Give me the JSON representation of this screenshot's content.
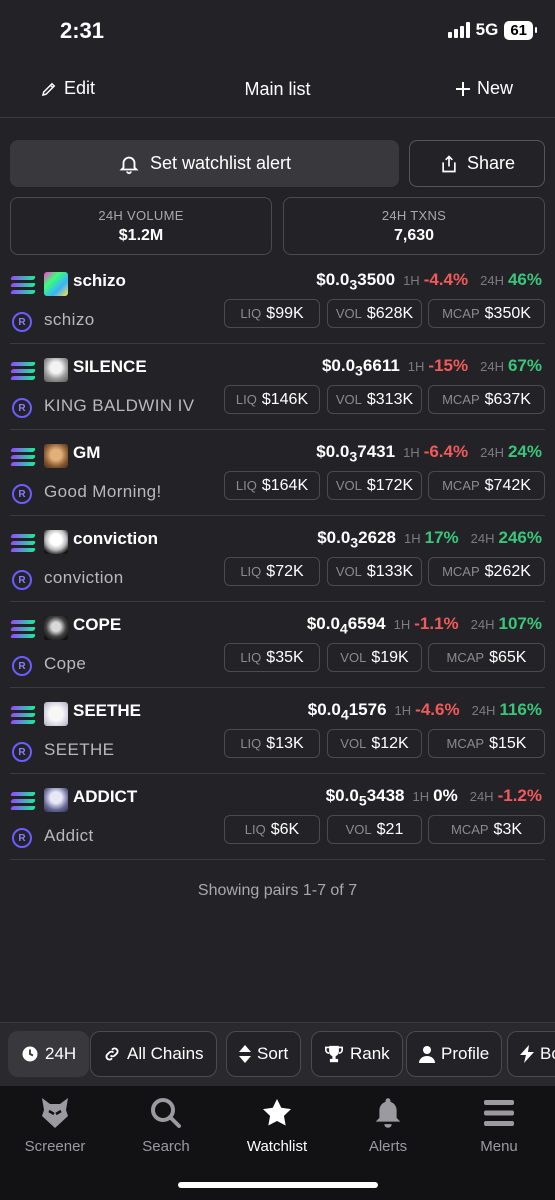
{
  "status": {
    "time": "2:31",
    "network": "5G",
    "battery": "61"
  },
  "header": {
    "edit": "Edit",
    "title": "Main list",
    "new": "New"
  },
  "actions": {
    "alert": "Set watchlist alert",
    "share": "Share"
  },
  "stats": {
    "volume_label": "24H VOLUME",
    "volume_value": "$1.2M",
    "txns_label": "24H TXNS",
    "txns_value": "7,630"
  },
  "labels": {
    "h1": "1H",
    "h24": "24H",
    "liq": "LIQ",
    "vol": "VOL",
    "mcap": "MCAP"
  },
  "pairs": [
    {
      "symbol": "schizo",
      "name": "schizo",
      "price_prefix": "$0.0",
      "price_zeros": "3",
      "price_digits": "3500",
      "change_1h": "-4.4%",
      "change_24h": "46%",
      "liq": "$99K",
      "vol": "$628K",
      "mcap": "$350K"
    },
    {
      "symbol": "SILENCE",
      "name": "KING BALDWIN IV",
      "price_prefix": "$0.0",
      "price_zeros": "3",
      "price_digits": "6611",
      "change_1h": "-15%",
      "change_24h": "67%",
      "liq": "$146K",
      "vol": "$313K",
      "mcap": "$637K"
    },
    {
      "symbol": "GM",
      "name": "Good Morning!",
      "price_prefix": "$0.0",
      "price_zeros": "3",
      "price_digits": "7431",
      "change_1h": "-6.4%",
      "change_24h": "24%",
      "liq": "$164K",
      "vol": "$172K",
      "mcap": "$742K"
    },
    {
      "symbol": "conviction",
      "name": "conviction",
      "price_prefix": "$0.0",
      "price_zeros": "3",
      "price_digits": "2628",
      "change_1h": "17%",
      "change_24h": "246%",
      "liq": "$72K",
      "vol": "$133K",
      "mcap": "$262K"
    },
    {
      "symbol": "COPE",
      "name": "Cope",
      "price_prefix": "$0.0",
      "price_zeros": "4",
      "price_digits": "6594",
      "change_1h": "-1.1%",
      "change_24h": "107%",
      "liq": "$35K",
      "vol": "$19K",
      "mcap": "$65K"
    },
    {
      "symbol": "SEETHE",
      "name": "SEETHE",
      "price_prefix": "$0.0",
      "price_zeros": "4",
      "price_digits": "1576",
      "change_1h": "-4.6%",
      "change_24h": "116%",
      "liq": "$13K",
      "vol": "$12K",
      "mcap": "$15K"
    },
    {
      "symbol": "ADDICT",
      "name": "Addict",
      "price_prefix": "$0.0",
      "price_zeros": "5",
      "price_digits": "3438",
      "change_1h": "0%",
      "change_24h": "-1.2%",
      "liq": "$6K",
      "vol": "$21",
      "mcap": "$3K"
    }
  ],
  "showing": "Showing pairs 1-7 of 7",
  "filters": {
    "time": "24H",
    "chains": "All Chains",
    "sort": "Sort",
    "rank": "Rank",
    "profile": "Profile",
    "boosted": "Bo"
  },
  "nav": {
    "screener": "Screener",
    "search": "Search",
    "watchlist": "Watchlist",
    "alerts": "Alerts",
    "menu": "Menu"
  },
  "colors": {
    "positive": "#3ac67a",
    "negative": "#f05a5a",
    "background": "#232327"
  }
}
